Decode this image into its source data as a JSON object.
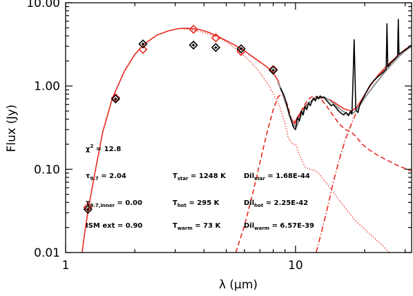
{
  "chart_data": {
    "type": "line",
    "xlabel": "λ (μm)",
    "ylabel": "Flux (Jy)",
    "xscale": "log",
    "yscale": "log",
    "xlim": [
      1.0,
      32.0
    ],
    "ylim": [
      0.01,
      10.0
    ],
    "x_ticks": [
      {
        "value": 1,
        "label": "1"
      },
      {
        "value": 10,
        "label": "10"
      }
    ],
    "y_ticks": [
      {
        "value": 0.01,
        "label": "0.01"
      },
      {
        "value": 0.1,
        "label": "0.10"
      },
      {
        "value": 1.0,
        "label": "1.00"
      },
      {
        "value": 10.0,
        "label": "10.00"
      }
    ],
    "colors": {
      "model": "#e8281e",
      "observed": "#000000",
      "spectrum_model": "#999999"
    },
    "annotations": {
      "chi2": {
        "sym": "χ",
        "sup": "2",
        "value": "= 12.8"
      },
      "rows": [
        [
          {
            "sym": "τ",
            "sub": "9.7",
            "value": "= 2.04"
          },
          {
            "sym": "T",
            "sub": "star",
            "value": "= 1248 K"
          },
          {
            "sym": "Dil",
            "sub": "star",
            "value": "= 1.68E-44"
          }
        ],
        [
          {
            "sym": "τ",
            "sub": "9.7,inner",
            "value": "= 0.00"
          },
          {
            "sym": "T",
            "sub": "hot",
            "value": "= 295 K"
          },
          {
            "sym": "Dil",
            "sub": "hot",
            "value": "= 2.25E-42"
          }
        ],
        [
          {
            "sym": "ISM ext",
            "sub": "",
            "value": "= 0.90"
          },
          {
            "sym": "T",
            "sub": "warm",
            "value": "= 73 K"
          },
          {
            "sym": "Dil",
            "sub": "warm",
            "value": "= 6.57E-39"
          }
        ]
      ]
    },
    "series": [
      {
        "style": "solid",
        "color": "#e8281e",
        "x": [
          1.18,
          1.22,
          1.26,
          1.35,
          1.45,
          1.6,
          1.8,
          2.0,
          2.2,
          2.5,
          2.8,
          3.1,
          3.4,
          3.8,
          4.2,
          4.6,
          5.0,
          5.5,
          6.0,
          6.5,
          7.0,
          7.5,
          8.0,
          8.4,
          8.8,
          9.2,
          9.5,
          9.8,
          10.0,
          10.3,
          10.7,
          11.2,
          11.8,
          12.5,
          13.3,
          14.2,
          15.2,
          16.3,
          17.5,
          18.5,
          19.5,
          21.0,
          23.0,
          25.5,
          28.0,
          30.0,
          32.0
        ],
        "y": [
          0.01,
          0.02,
          0.035,
          0.1,
          0.28,
          0.72,
          1.5,
          2.4,
          3.2,
          4.1,
          4.6,
          4.9,
          4.95,
          4.8,
          4.4,
          3.95,
          3.5,
          3.05,
          2.65,
          2.25,
          1.95,
          1.7,
          1.45,
          1.15,
          0.8,
          0.55,
          0.43,
          0.37,
          0.38,
          0.44,
          0.52,
          0.6,
          0.67,
          0.72,
          0.72,
          0.68,
          0.6,
          0.53,
          0.5,
          0.56,
          0.7,
          0.98,
          1.38,
          1.85,
          2.35,
          2.75,
          3.1
        ]
      },
      {
        "style": "dotted",
        "color": "#e8281e",
        "x": [
          3.2,
          3.6,
          4.0,
          4.5,
          5.0,
          5.5,
          6.0,
          6.5,
          7.0,
          7.5,
          8.0,
          8.5,
          9.0,
          9.3,
          9.7,
          10.0,
          10.5,
          11.0,
          11.5,
          12.0,
          12.5,
          13.0,
          14.0,
          15.0,
          16.5,
          18.0,
          20.0,
          22.0,
          24.0,
          26.0
        ],
        "y": [
          4.9,
          4.7,
          4.4,
          3.9,
          3.4,
          2.8,
          2.3,
          1.85,
          1.45,
          1.1,
          0.82,
          0.58,
          0.36,
          0.24,
          0.2,
          0.2,
          0.14,
          0.107,
          0.1,
          0.098,
          0.092,
          0.08,
          0.062,
          0.048,
          0.034,
          0.025,
          0.019,
          0.015,
          0.012,
          0.0095
        ]
      },
      {
        "style": "dashed",
        "color": "#e8281e",
        "x": [
          5.5,
          6.0,
          6.5,
          7.0,
          7.5,
          8.0,
          8.4,
          8.7,
          9.0,
          9.3,
          9.6,
          9.9,
          10.3,
          10.8,
          11.4,
          12.0,
          12.7,
          13.5,
          14.5,
          15.5,
          16.5,
          17.5,
          18.5,
          19.5,
          21.0,
          23.0,
          25.5,
          28.0,
          32.0
        ],
        "y": [
          0.01,
          0.021,
          0.05,
          0.12,
          0.27,
          0.52,
          0.74,
          0.8,
          0.72,
          0.55,
          0.4,
          0.35,
          0.42,
          0.56,
          0.7,
          0.76,
          0.73,
          0.6,
          0.45,
          0.35,
          0.3,
          0.28,
          0.24,
          0.2,
          0.17,
          0.145,
          0.125,
          0.11,
          0.095
        ]
      },
      {
        "style": "dashdot",
        "color": "#e8281e",
        "x": [
          12.3,
          13.0,
          13.8,
          14.6,
          15.5,
          16.5,
          17.5,
          18.5,
          19.5,
          21.0,
          23.0,
          25.5,
          28.0,
          30.0,
          32.0
        ],
        "y": [
          0.01,
          0.018,
          0.035,
          0.07,
          0.13,
          0.23,
          0.35,
          0.5,
          0.68,
          0.98,
          1.35,
          1.85,
          2.35,
          2.75,
          3.1
        ]
      },
      {
        "style": "solid",
        "color": "#999999",
        "x": [
          8.4,
          8.8,
          9.2,
          9.5,
          9.8,
          10.1,
          10.5,
          11.0,
          11.5,
          12.0,
          12.5,
          13.0,
          13.5,
          14.0,
          15.0,
          16.0,
          17.0,
          18.0,
          19.0,
          20.0,
          22.0,
          24.0,
          26.0,
          28.0,
          30.0,
          32.0
        ],
        "y": [
          1.1,
          0.8,
          0.55,
          0.42,
          0.34,
          0.32,
          0.42,
          0.55,
          0.64,
          0.7,
          0.73,
          0.74,
          0.72,
          0.68,
          0.58,
          0.5,
          0.46,
          0.48,
          0.58,
          0.72,
          1.02,
          1.38,
          1.78,
          2.22,
          2.65,
          3.0
        ]
      },
      {
        "style": "solid",
        "color": "#000000",
        "x": [
          8.6,
          8.9,
          9.2,
          9.4,
          9.6,
          9.8,
          10.0,
          10.2,
          10.4,
          10.6,
          10.8,
          11.0,
          11.2,
          11.4,
          11.6,
          11.8,
          12.0,
          12.2,
          12.4,
          12.6,
          12.8,
          13.0,
          13.3,
          13.6,
          14.0,
          14.3,
          14.6,
          15.0,
          15.4,
          15.8,
          16.2,
          16.6,
          17.0,
          17.4,
          17.6,
          17.8,
          18.0,
          18.3,
          18.7,
          19.0,
          19.5,
          20.0,
          21.0,
          22.0,
          23.0,
          24.0,
          24.8,
          25.0,
          25.2,
          26.0,
          27.0,
          27.8,
          28.0,
          28.2,
          29.0,
          30.0,
          31.0,
          32.0
        ],
        "y": [
          0.95,
          0.78,
          0.58,
          0.45,
          0.38,
          0.32,
          0.3,
          0.42,
          0.38,
          0.5,
          0.45,
          0.57,
          0.52,
          0.63,
          0.58,
          0.66,
          0.72,
          0.66,
          0.75,
          0.7,
          0.76,
          0.72,
          0.74,
          0.68,
          0.62,
          0.58,
          0.6,
          0.55,
          0.5,
          0.47,
          0.45,
          0.48,
          0.44,
          0.5,
          0.46,
          1.2,
          3.6,
          0.52,
          0.48,
          0.58,
          0.68,
          0.78,
          1.0,
          1.18,
          1.32,
          1.45,
          1.6,
          5.6,
          1.7,
          1.9,
          2.1,
          2.3,
          6.3,
          2.4,
          2.55,
          2.7,
          2.9,
          3.1
        ]
      }
    ],
    "markers": [
      {
        "style": "red-diamond",
        "color": "#e8281e",
        "x": [
          1.25,
          1.65,
          2.17,
          3.6,
          4.5,
          5.8,
          8.0
        ],
        "y": [
          0.035,
          0.72,
          2.75,
          4.8,
          3.8,
          2.6,
          1.58
        ]
      },
      {
        "style": "black-diamond-cross",
        "color": "#000000",
        "x": [
          1.25,
          1.65,
          2.17,
          3.6,
          4.5,
          5.8,
          8.0
        ],
        "y": [
          0.033,
          0.7,
          3.2,
          3.1,
          2.9,
          2.8,
          1.55
        ]
      }
    ]
  }
}
